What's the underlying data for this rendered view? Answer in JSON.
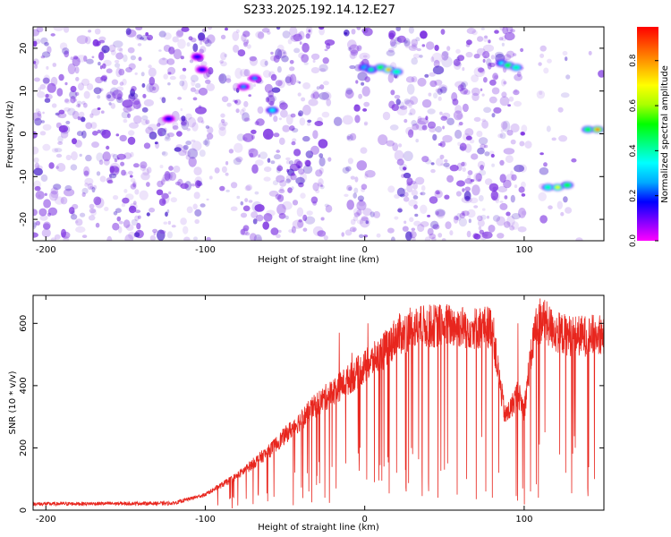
{
  "page": {
    "title": "S233.2025.192.14.12.E27"
  },
  "chart_data": [
    {
      "type": "heatmap",
      "xlabel": "Height of straight line (km)",
      "ylabel": "Frequency (Hz)",
      "xlim": [
        -208,
        150
      ],
      "ylim": [
        -25,
        25
      ],
      "xticks": [
        -200,
        -100,
        0,
        100
      ],
      "yticks": [
        -20,
        -10,
        0,
        10,
        20
      ],
      "colorbar": {
        "label": "Normalized spectral amplitude",
        "range": [
          0,
          0.95
        ],
        "ticks": [
          0.0,
          0.2,
          0.4,
          0.6,
          0.8
        ],
        "tick_labels": [
          "0.0",
          "0.2",
          "0.4",
          "0.6",
          "0.8"
        ],
        "colors": [
          "#ff00ff",
          "#8000ff",
          "#0000ff",
          "#00aaff",
          "#00ffff",
          "#00ff80",
          "#00ff00",
          "#aaff00",
          "#ffff00",
          "#ffaa00",
          "#ff5500",
          "#ff0000"
        ]
      },
      "background_noise_color": "#7a2ee0",
      "peaks": [
        {
          "x": -105,
          "y": 18,
          "value": 0.18
        },
        {
          "x": -102,
          "y": 15,
          "value": 0.2
        },
        {
          "x": -76,
          "y": 11,
          "value": 0.25
        },
        {
          "x": -69,
          "y": 13,
          "value": 0.22
        },
        {
          "x": -58,
          "y": 5.5,
          "value": 0.35
        },
        {
          "x": -123,
          "y": 3.5,
          "value": 0.2
        },
        {
          "x": 0,
          "y": 15.5,
          "value": 0.3
        },
        {
          "x": 4,
          "y": 15,
          "value": 0.4
        },
        {
          "x": 10,
          "y": 15.5,
          "value": 0.55
        },
        {
          "x": 15,
          "y": 15,
          "value": 0.75
        },
        {
          "x": 20,
          "y": 14.5,
          "value": 0.45
        },
        {
          "x": 86,
          "y": 16.5,
          "value": 0.35
        },
        {
          "x": 90,
          "y": 16,
          "value": 0.55
        },
        {
          "x": 95,
          "y": 15.5,
          "value": 0.45
        },
        {
          "x": 115,
          "y": -12.5,
          "value": 0.45
        },
        {
          "x": 121,
          "y": -12.5,
          "value": 0.7
        },
        {
          "x": 127,
          "y": -12,
          "value": 0.55
        },
        {
          "x": 140,
          "y": 1,
          "value": 0.55
        },
        {
          "x": 146,
          "y": 1,
          "value": 0.85
        }
      ]
    },
    {
      "type": "line",
      "xlabel": "Height of straight line (km)",
      "ylabel": "SNR (10 * v/v)",
      "xlim": [
        -208,
        150
      ],
      "ylim": [
        0,
        690
      ],
      "xticks": [
        -200,
        -100,
        0,
        100
      ],
      "yticks": [
        0,
        200,
        400,
        600
      ],
      "line_color": "#e8261e",
      "baseline": [
        [
          -208,
          20
        ],
        [
          -120,
          22
        ],
        [
          -100,
          50
        ],
        [
          -90,
          80
        ],
        [
          -80,
          110
        ],
        [
          -70,
          150
        ],
        [
          -60,
          190
        ],
        [
          -50,
          240
        ],
        [
          -40,
          290
        ],
        [
          -30,
          340
        ],
        [
          -20,
          380
        ],
        [
          -10,
          420
        ],
        [
          0,
          460
        ],
        [
          10,
          500
        ],
        [
          20,
          560
        ],
        [
          30,
          585
        ],
        [
          40,
          590
        ],
        [
          50,
          595
        ],
        [
          60,
          590
        ],
        [
          70,
          585
        ],
        [
          80,
          590
        ],
        [
          83,
          470
        ],
        [
          88,
          300
        ],
        [
          92,
          330
        ],
        [
          96,
          380
        ],
        [
          100,
          320
        ],
        [
          103,
          450
        ],
        [
          107,
          590
        ],
        [
          112,
          610
        ],
        [
          120,
          570
        ],
        [
          130,
          560
        ],
        [
          140,
          560
        ],
        [
          150,
          565
        ]
      ],
      "dips": [
        [
          -35,
          60
        ],
        [
          -30,
          110
        ],
        [
          -25,
          40
        ],
        [
          -18,
          70
        ],
        [
          -12,
          150
        ],
        [
          -8,
          35
        ],
        [
          -3,
          200
        ],
        [
          2,
          50
        ],
        [
          6,
          90
        ],
        [
          12,
          140
        ],
        [
          16,
          30
        ],
        [
          20,
          120
        ],
        [
          26,
          60
        ],
        [
          30,
          180
        ],
        [
          36,
          45
        ],
        [
          40,
          90
        ],
        [
          46,
          40
        ],
        [
          52,
          150
        ],
        [
          58,
          50
        ],
        [
          64,
          100
        ],
        [
          70,
          35
        ],
        [
          76,
          60
        ],
        [
          80,
          40
        ],
        [
          84,
          120
        ],
        [
          95,
          45
        ],
        [
          99,
          70
        ],
        [
          104,
          60
        ],
        [
          109,
          40
        ],
        [
          113,
          250
        ],
        [
          118,
          30
        ],
        [
          126,
          120
        ],
        [
          132,
          200
        ],
        [
          140,
          45
        ],
        [
          144,
          100
        ]
      ],
      "spikes": [
        [
          -16,
          570
        ],
        [
          -8,
          505
        ],
        [
          2,
          600
        ],
        [
          10,
          545
        ],
        [
          16,
          520
        ],
        [
          24,
          600
        ],
        [
          44,
          610
        ],
        [
          68,
          600
        ],
        [
          72,
          630
        ],
        [
          96,
          600
        ],
        [
          110,
          680
        ],
        [
          118,
          620
        ]
      ]
    }
  ]
}
